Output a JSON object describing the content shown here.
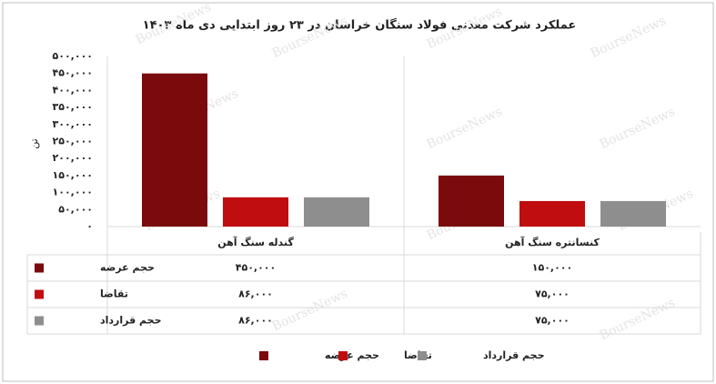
{
  "chart_data": {
    "type": "bar",
    "title": "عملکرد شرکت معدنی فولاد سنگان خراسان در ۲۳ روز ابتدایی دی ماه ۱۴۰۳",
    "y_label": "تن",
    "watermark": "BourseNews",
    "categories": [
      "گندله سنگ آهن",
      "کنسانتره سنگ آهن"
    ],
    "series": [
      {
        "name": "حجم عرضه",
        "color": "#7a0a0c",
        "values": [
          450000,
          150000
        ],
        "value_labels": [
          "۴۵۰,۰۰۰",
          "۱۵۰,۰۰۰"
        ]
      },
      {
        "name": "تقاضا",
        "color": "#c00d10",
        "values": [
          86000,
          75000
        ],
        "value_labels": [
          "۸۶,۰۰۰",
          "۷۵,۰۰۰"
        ]
      },
      {
        "name": "حجم قرارداد",
        "color": "#8e8e8e",
        "values": [
          86000,
          75000
        ],
        "value_labels": [
          "۸۶,۰۰۰",
          "۷۵,۰۰۰"
        ]
      }
    ],
    "ylim": [
      0,
      500000
    ],
    "yticks": [
      {
        "value": 0,
        "label": "۰"
      },
      {
        "value": 50000,
        "label": "۵۰,۰۰۰"
      },
      {
        "value": 100000,
        "label": "۱۰۰,۰۰۰"
      },
      {
        "value": 150000,
        "label": "۱۵۰,۰۰۰"
      },
      {
        "value": 200000,
        "label": "۲۰۰,۰۰۰"
      },
      {
        "value": 250000,
        "label": "۲۵۰,۰۰۰"
      },
      {
        "value": 300000,
        "label": "۳۰۰,۰۰۰"
      },
      {
        "value": 350000,
        "label": "۳۵۰,۰۰۰"
      },
      {
        "value": 400000,
        "label": "۴۰۰,۰۰۰"
      },
      {
        "value": 450000,
        "label": "۴۵۰,۰۰۰"
      },
      {
        "value": 500000,
        "label": "۵۰۰,۰۰۰"
      }
    ],
    "grid": false
  }
}
